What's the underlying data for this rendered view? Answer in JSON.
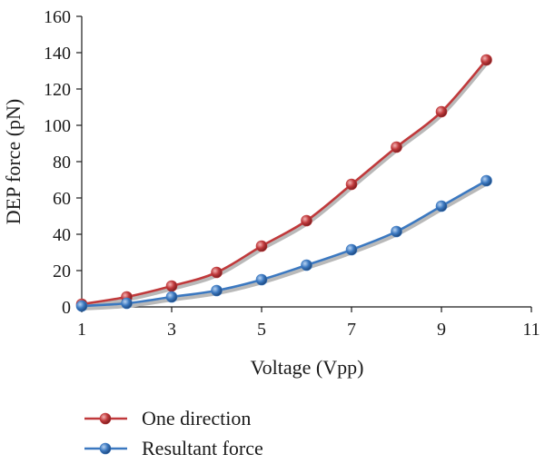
{
  "chart_data": {
    "type": "line",
    "xlabel": "Voltage (Vpp)",
    "ylabel": "DEP force (pN)",
    "xlim": [
      1,
      11
    ],
    "ylim": [
      0,
      160
    ],
    "xticks": [
      1,
      3,
      5,
      7,
      9,
      11
    ],
    "yticks": [
      0,
      20,
      40,
      60,
      80,
      100,
      120,
      140,
      160
    ],
    "grid": false,
    "legend_position": "bottom",
    "series": [
      {
        "name": "One direction",
        "color": "#c0393b",
        "x": [
          1,
          2,
          3,
          4,
          5,
          6,
          7,
          8,
          9,
          10
        ],
        "y": [
          1.5,
          5.5,
          11.5,
          19,
          33.5,
          47.5,
          67.5,
          88,
          107.5,
          136
        ]
      },
      {
        "name": "Resultant force",
        "color": "#3b78c0",
        "x": [
          1,
          2,
          3,
          4,
          5,
          6,
          7,
          8,
          9,
          10
        ],
        "y": [
          0.5,
          2,
          5.5,
          9,
          15,
          23,
          31.5,
          41.5,
          55.5,
          69.5
        ]
      }
    ]
  }
}
